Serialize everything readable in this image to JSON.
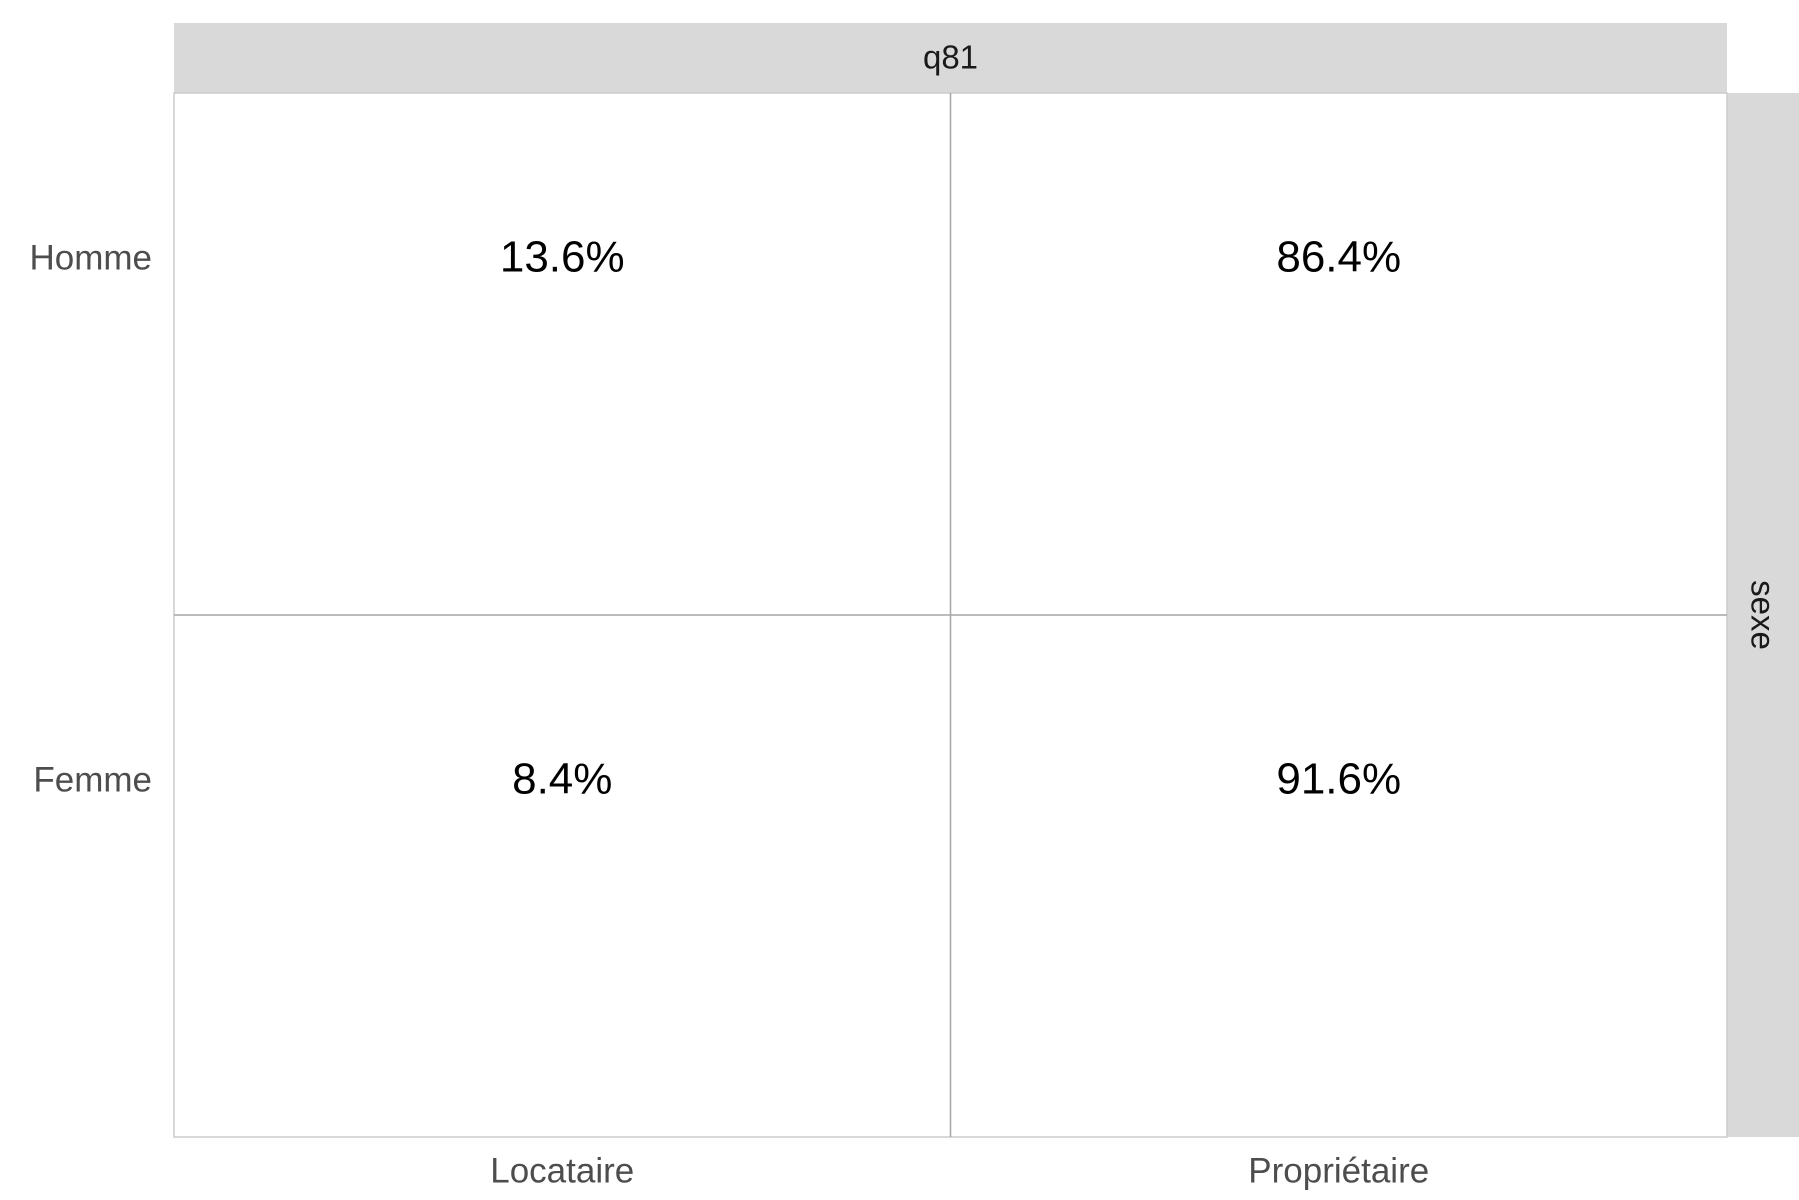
{
  "chart_data": {
    "type": "table",
    "facet_col_strip": "q81",
    "facet_row_strip": "sexe",
    "columns": [
      "Locataire",
      "Propriétaire"
    ],
    "rows": [
      "Homme",
      "Femme"
    ],
    "cells": [
      [
        "13.6%",
        "86.4%"
      ],
      [
        "8.4%",
        "91.6%"
      ]
    ],
    "values": [
      [
        13.6,
        86.4
      ],
      [
        8.4,
        91.6
      ]
    ],
    "unit": "%",
    "grid": true
  },
  "colors": {
    "strip_background": "#d9d9d9",
    "panel_background": "#ffffff",
    "panel_border": "#cccccc",
    "gridline": "#a6a6a6",
    "axis_text": "#4d4d4d",
    "cell_text": "#000000",
    "strip_text": "#1a1a1a"
  }
}
